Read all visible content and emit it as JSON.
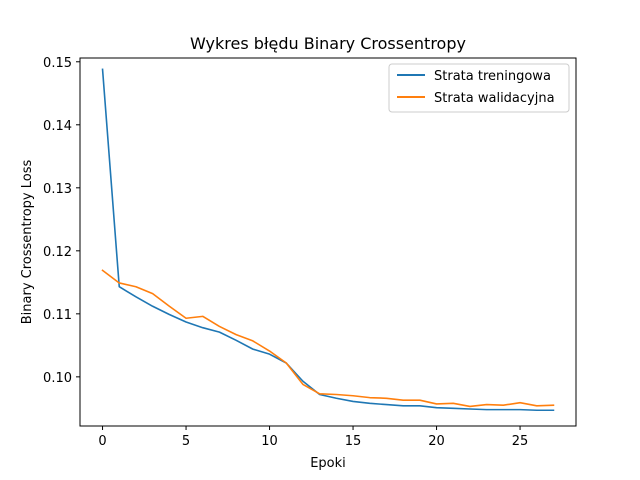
{
  "chart_data": {
    "type": "line",
    "title": "Wykres błędu Binary Crossentropy",
    "xlabel": "Epoki",
    "ylabel": "Binary Crossentropy Loss",
    "xlim": [
      -1.35,
      28.35
    ],
    "ylim": [
      0.0922,
      0.1506
    ],
    "xticks": [
      0,
      5,
      10,
      15,
      20,
      25
    ],
    "yticks": [
      0.1,
      0.11,
      0.12,
      0.13,
      0.14,
      0.15
    ],
    "ytick_labels": [
      "0.10",
      "0.11",
      "0.12",
      "0.13",
      "0.14",
      "0.15"
    ],
    "grid": false,
    "legend_position": "top-right",
    "x": [
      0,
      1,
      2,
      3,
      4,
      5,
      6,
      7,
      8,
      9,
      10,
      11,
      12,
      13,
      14,
      15,
      16,
      17,
      18,
      19,
      20,
      21,
      22,
      23,
      24,
      25,
      26,
      27
    ],
    "series": [
      {
        "name": "Strata treningowa",
        "color": "#1f77b4",
        "values": [
          0.1488,
          0.1143,
          0.1127,
          0.1112,
          0.1099,
          0.1087,
          0.1078,
          0.1071,
          0.1058,
          0.1044,
          0.1036,
          0.1022,
          0.0993,
          0.0972,
          0.0966,
          0.0961,
          0.0958,
          0.0956,
          0.0954,
          0.0954,
          0.0951,
          0.095,
          0.0949,
          0.0948,
          0.0948,
          0.0948,
          0.0947,
          0.0947
        ]
      },
      {
        "name": "Strata walidacyjna",
        "color": "#ff7f0e",
        "values": [
          0.1169,
          0.1149,
          0.1143,
          0.1132,
          0.1112,
          0.1093,
          0.1096,
          0.108,
          0.1067,
          0.1057,
          0.1041,
          0.1022,
          0.0988,
          0.0973,
          0.0972,
          0.097,
          0.0967,
          0.0966,
          0.0963,
          0.0963,
          0.0957,
          0.0958,
          0.0953,
          0.0956,
          0.0955,
          0.0959,
          0.0954,
          0.0955
        ]
      }
    ]
  }
}
